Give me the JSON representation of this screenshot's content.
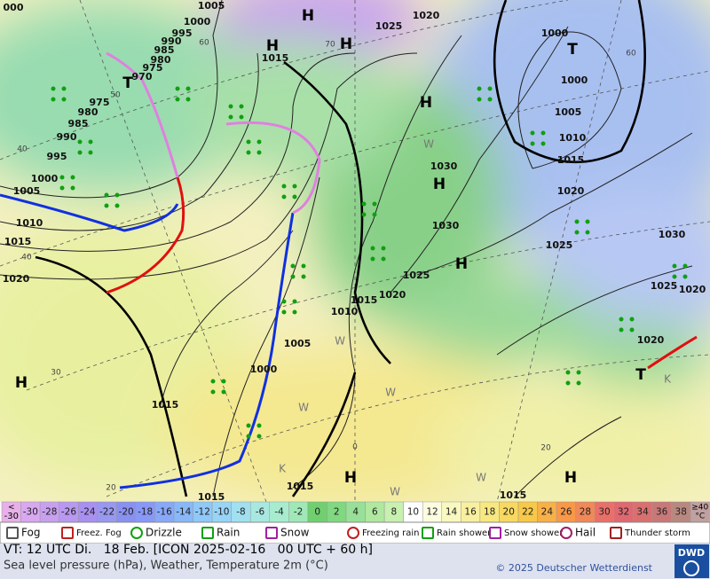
{
  "map": {
    "isobar_labels": [
      "000",
      1005,
      1000,
      995,
      990,
      985,
      980,
      975,
      970,
      975,
      980,
      985,
      990,
      995,
      1000,
      1005,
      1010,
      1015,
      1020,
      1015,
      1020,
      1025,
      1000,
      1000,
      1005,
      1010,
      1015,
      1020,
      1030,
      1030,
      1025,
      1030,
      1025,
      1020,
      1025,
      1020,
      1015,
      1010,
      1005,
      1000,
      1015,
      1015,
      1015,
      1015,
      1020
    ],
    "centers": [
      "H",
      "H",
      "H",
      "H",
      "H",
      "H",
      "H",
      "H",
      "H",
      "T",
      "T",
      "T"
    ],
    "temperature_marks": [
      "W",
      "W",
      "W",
      "W",
      "W",
      "W",
      "K",
      "K"
    ],
    "grid_labels": [
      60,
      70,
      60,
      50,
      40,
      40,
      30,
      20,
      20,
      0
    ]
  },
  "temperature_scale": {
    "below": {
      "sign": "<",
      "value": -30
    },
    "steps": [
      -30,
      -28,
      -26,
      -24,
      -22,
      -20,
      -18,
      -16,
      -14,
      -12,
      -10,
      -8,
      -6,
      -4,
      -2,
      0,
      2,
      4,
      6,
      8,
      10,
      12,
      14,
      16,
      18,
      20,
      22,
      24,
      26,
      28,
      30,
      32,
      34,
      36,
      38
    ],
    "above": {
      "sign": "≥40",
      "unit": "°C"
    },
    "colors": [
      "#e8b0e8",
      "#d8a8f0",
      "#c8a0f0",
      "#b898f0",
      "#a890f0",
      "#9898f0",
      "#8890f0",
      "#8898f8",
      "#88a8f8",
      "#88b8f8",
      "#90c8f8",
      "#98d4f8",
      "#a0e0f0",
      "#a8e8e0",
      "#a8ecd0",
      "#a0e8b8",
      "#70d070",
      "#80d880",
      "#98e098",
      "#b0e8a0",
      "#c8f0b0",
      "#ffffff",
      "#fcfce0",
      "#f8f8c0",
      "#f8f0a0",
      "#f8e880",
      "#f8d860",
      "#f8c848",
      "#f8b048",
      "#f89848",
      "#f08858",
      "#e87068",
      "#e06870",
      "#d87070",
      "#c87878",
      "#b88880",
      "#c0a0a0"
    ]
  },
  "weather_legend": [
    "Fog",
    "Freez. Fog",
    "Drizzle",
    "Rain",
    "Snow",
    "Freezing rain",
    "Rain shower",
    "Snow shower",
    "Hail",
    "Thunder storm"
  ],
  "footer": {
    "valid_time": "VT: 12 UTC Di.   18 Feb. [ICON 2025-02-16   00 UTC + 60 h]",
    "description": "Sea level pressure (hPa), Weather, Temperature 2m (°C)",
    "copyright": "© 2025 Deutscher Wetterdienst",
    "logo": "DWD"
  }
}
